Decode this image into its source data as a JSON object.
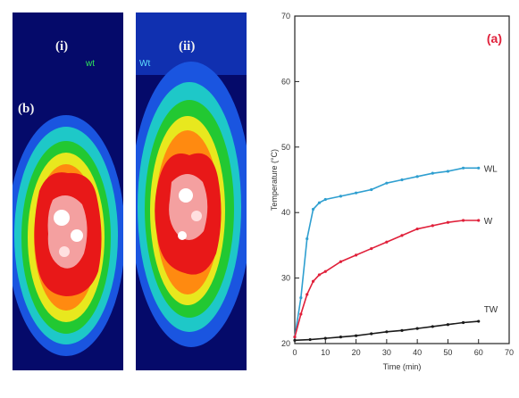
{
  "thermal_images": [
    {
      "panel_label": "(b)",
      "sub_label": "(i)",
      "tag": "wt"
    },
    {
      "panel_label": "",
      "sub_label": "(ii)",
      "tag": "Wt"
    }
  ],
  "colors": {
    "series_WL": "#2f9fd0",
    "series_W": "#e0203a",
    "series_TW": "#1a1a1a",
    "panel_label": "#e0203a"
  },
  "chart_data": {
    "type": "line",
    "panel_label": "(a)",
    "xlabel": "Time (min)",
    "ylabel": "Temperature (°C)",
    "xlim": [
      0,
      70
    ],
    "ylim": [
      20,
      70
    ],
    "x_ticks": [
      "0",
      "10",
      "20",
      "30",
      "40",
      "50",
      "60",
      "70"
    ],
    "y_ticks": [
      "20",
      "30",
      "40",
      "50",
      "60",
      "70"
    ],
    "series": [
      {
        "name": "WL",
        "x": [
          0,
          2,
          4,
          6,
          8,
          10,
          15,
          20,
          25,
          30,
          35,
          40,
          45,
          50,
          55,
          60
        ],
        "y": [
          21,
          27,
          36,
          40.5,
          41.5,
          42,
          42.5,
          43,
          43.5,
          44.5,
          45,
          45.5,
          46,
          46.3,
          46.8,
          46.8
        ]
      },
      {
        "name": "W",
        "x": [
          0,
          2,
          4,
          6,
          8,
          10,
          15,
          20,
          25,
          30,
          35,
          40,
          45,
          50,
          55,
          60
        ],
        "y": [
          21,
          24.5,
          27.5,
          29.5,
          30.5,
          31,
          32.5,
          33.5,
          34.5,
          35.5,
          36.5,
          37.5,
          38,
          38.5,
          38.8,
          38.8
        ]
      },
      {
        "name": "TW",
        "x": [
          0,
          5,
          10,
          15,
          20,
          25,
          30,
          35,
          40,
          45,
          50,
          55,
          60
        ],
        "y": [
          20.5,
          20.6,
          20.8,
          21,
          21.2,
          21.5,
          21.8,
          22,
          22.3,
          22.6,
          22.9,
          23.2,
          23.4
        ]
      }
    ]
  }
}
